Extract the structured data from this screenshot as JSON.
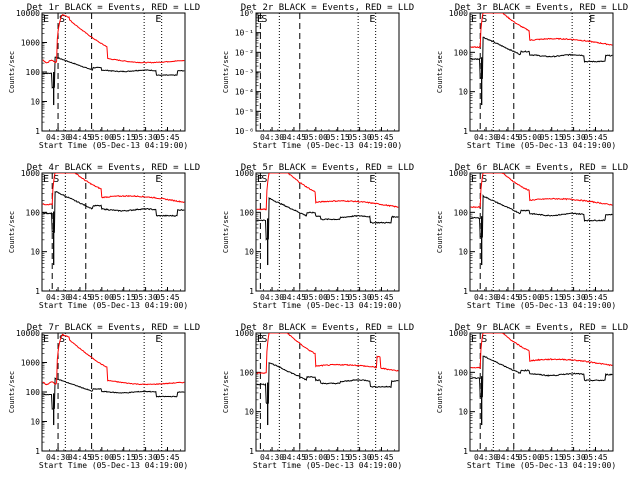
{
  "figure": {
    "xlabel": "Start Time (05-Dec-13 04:19:00)",
    "ylabel": "Counts/sec",
    "xticks": [
      "04:30",
      "04:45",
      "05:00",
      "05:15",
      "05:30",
      "05:45"
    ]
  },
  "chart_data": [
    {
      "title": "Det 1r BLACK = Events, RED = LLD",
      "type": "line",
      "yscale": "log",
      "ylim": [
        1,
        10000
      ],
      "xlim": [
        "04:19",
        "05:57"
      ],
      "yticks": [
        "1",
        "10",
        "100",
        "1000",
        "10000"
      ],
      "markers": [
        {
          "label": "E",
          "x": "04:19"
        },
        {
          "label": "S",
          "x": "04:30"
        },
        {
          "label": "E",
          "x": "05:36"
        }
      ],
      "dashed_lines": [
        "04:30",
        "04:53"
      ],
      "dotted_lines": [
        "04:35",
        "05:29",
        "05:41"
      ],
      "series": [
        {
          "color": "#000000",
          "profile": "A",
          "base": 100
        },
        {
          "color": "#ff0000",
          "profile": "BIG",
          "base": 230
        }
      ]
    },
    {
      "title": "Det 2r BLACK = Events, RED = LLD",
      "type": "line",
      "yscale": "log",
      "ylim": [
        1,
        1e-06
      ],
      "xlim": [
        "04:19",
        "05:57"
      ],
      "yticks": [
        "10⁻⁶",
        "10⁻⁵",
        "10⁻⁴",
        "10⁻³",
        "10⁻²",
        "10⁻¹",
        "10⁰"
      ],
      "markers": [
        {
          "label": "E",
          "x": "04:19"
        },
        {
          "label": "S",
          "x": "04:22"
        },
        {
          "label": "E",
          "x": "05:36"
        }
      ],
      "dashed_lines": [
        "04:22",
        "04:49"
      ],
      "dotted_lines": [
        "04:35",
        "05:29",
        "05:41"
      ],
      "series": []
    },
    {
      "title": "Det 3r BLACK = Events, RED = LLD",
      "type": "line",
      "yscale": "log",
      "ylim": [
        1,
        1000
      ],
      "xlim": [
        "04:19",
        "05:57"
      ],
      "yticks": [
        "1",
        "10",
        "100",
        "1000"
      ],
      "markers": [
        {
          "label": "E",
          "x": "04:19"
        },
        {
          "label": "S",
          "x": "04:26"
        },
        {
          "label": "E",
          "x": "05:40"
        }
      ],
      "dashed_lines": [
        "04:26",
        "04:49"
      ],
      "dotted_lines": [
        "04:35",
        "05:29",
        "05:41"
      ],
      "series": [
        {
          "color": "#000000",
          "profile": "A",
          "base": 75
        },
        {
          "color": "#ff0000",
          "profile": "B",
          "base": 170
        }
      ]
    },
    {
      "title": "Det 4r BLACK = Events, RED = LLD",
      "type": "line",
      "yscale": "log",
      "ylim": [
        1,
        1000
      ],
      "xlim": [
        "04:19",
        "05:57"
      ],
      "yticks": [
        "1",
        "10",
        "100",
        "1000"
      ],
      "markers": [
        {
          "label": "E",
          "x": "04:19"
        },
        {
          "label": "S",
          "x": "04:26"
        },
        {
          "label": "E",
          "x": "05:36"
        }
      ],
      "dashed_lines": [
        "04:26",
        "04:49"
      ],
      "dotted_lines": [
        "04:35",
        "05:29",
        "05:41"
      ],
      "series": [
        {
          "color": "#000000",
          "profile": "A",
          "base": 105
        },
        {
          "color": "#ff0000",
          "profile": "B",
          "base": 200
        }
      ]
    },
    {
      "title": "Det 5r BLACK = Events, RED = LLD",
      "type": "line",
      "yscale": "log",
      "ylim": [
        1,
        1000
      ],
      "xlim": [
        "04:19",
        "05:57"
      ],
      "yticks": [
        "1",
        "10",
        "100",
        "1000"
      ],
      "markers": [
        {
          "label": "E",
          "x": "04:19"
        },
        {
          "label": "S",
          "x": "04:22"
        },
        {
          "label": "E",
          "x": "05:36"
        }
      ],
      "dashed_lines": [
        "04:22",
        "04:49"
      ],
      "dotted_lines": [
        "04:35",
        "05:29",
        "05:41"
      ],
      "series": [
        {
          "color": "#000000",
          "profile": "C",
          "base": 70
        },
        {
          "color": "#ff0000",
          "profile": "B",
          "base": 150
        }
      ]
    },
    {
      "title": "Det 6r BLACK = Events, RED = LLD",
      "type": "line",
      "yscale": "log",
      "ylim": [
        1,
        1000
      ],
      "xlim": [
        "04:19",
        "05:57"
      ],
      "yticks": [
        "1",
        "10",
        "100",
        "1000"
      ],
      "markers": [
        {
          "label": "E",
          "x": "04:19"
        },
        {
          "label": "S",
          "x": "04:26"
        },
        {
          "label": "E",
          "x": "05:36"
        }
      ],
      "dashed_lines": [
        "04:26",
        "04:49"
      ],
      "dotted_lines": [
        "04:35",
        "05:29",
        "05:41"
      ],
      "series": [
        {
          "color": "#000000",
          "profile": "A",
          "base": 80
        },
        {
          "color": "#ff0000",
          "profile": "B",
          "base": 170
        }
      ]
    },
    {
      "title": "Det 7r BLACK = Events, RED = LLD",
      "type": "line",
      "yscale": "log",
      "ylim": [
        1,
        10000
      ],
      "xlim": [
        "04:19",
        "05:57"
      ],
      "yticks": [
        "1",
        "10",
        "100",
        "1000",
        "10000"
      ],
      "markers": [
        {
          "label": "E",
          "x": "04:19"
        },
        {
          "label": "S",
          "x": "04:30"
        },
        {
          "label": "E",
          "x": "05:36"
        }
      ],
      "dashed_lines": [
        "04:30",
        "04:53"
      ],
      "dotted_lines": [
        "04:35",
        "05:29",
        "05:41"
      ],
      "series": [
        {
          "color": "#000000",
          "profile": "A",
          "base": 90
        },
        {
          "color": "#ff0000",
          "profile": "BIG",
          "base": 200
        }
      ]
    },
    {
      "title": "Det 8r BLACK = Events, RED = LLD",
      "type": "line",
      "yscale": "log",
      "ylim": [
        1,
        1000
      ],
      "xlim": [
        "04:19",
        "05:57"
      ],
      "yticks": [
        "1",
        "10",
        "100",
        "1000"
      ],
      "markers": [
        {
          "label": "E",
          "x": "04:19"
        },
        {
          "label": "S",
          "x": "04:22"
        },
        {
          "label": "E",
          "x": "05:36"
        }
      ],
      "dashed_lines": [
        "04:22",
        "04:49"
      ],
      "dotted_lines": [
        "04:35",
        "05:29",
        "05:41"
      ],
      "series": [
        {
          "color": "#000000",
          "profile": "C",
          "base": 55
        },
        {
          "color": "#ff0000",
          "profile": "D",
          "base": 120
        }
      ]
    },
    {
      "title": "Det 9r BLACK = Events, RED = LLD",
      "type": "line",
      "yscale": "log",
      "ylim": [
        1,
        1000
      ],
      "xlim": [
        "04:19",
        "05:57"
      ],
      "yticks": [
        "1",
        "10",
        "100",
        "1000"
      ],
      "markers": [
        {
          "label": "E",
          "x": "04:19"
        },
        {
          "label": "S",
          "x": "04:26"
        },
        {
          "label": "E",
          "x": "05:36"
        }
      ],
      "dashed_lines": [
        "04:26",
        "04:49"
      ],
      "dotted_lines": [
        "04:35",
        "05:29",
        "05:41"
      ],
      "series": [
        {
          "color": "#000000",
          "profile": "A",
          "base": 80
        },
        {
          "color": "#ff0000",
          "profile": "B",
          "base": 165
        }
      ]
    }
  ]
}
